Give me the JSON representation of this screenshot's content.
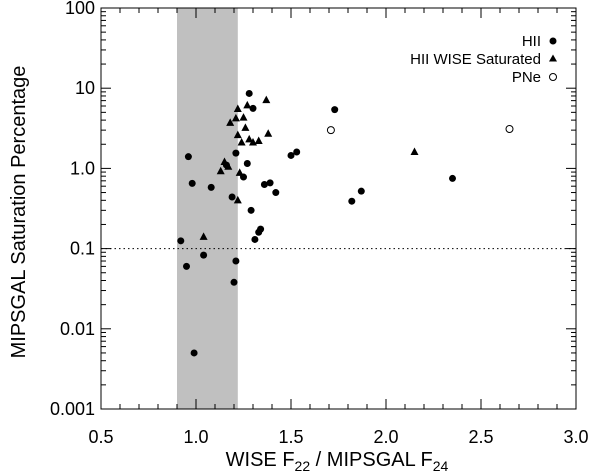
{
  "chart_data": {
    "type": "scatter",
    "title": "",
    "xlabel": {
      "prefix": "WISE F",
      "sub1": "22",
      "middle": " / MIPSGAL F",
      "sub2": "24"
    },
    "ylabel": "MIPSGAL Saturation Percentage",
    "xlim": [
      0.5,
      3.0
    ],
    "ylim": [
      0.001,
      100
    ],
    "yscale": "log",
    "xticks": [
      {
        "value": 0.5,
        "label": "0.5"
      },
      {
        "value": 1.0,
        "label": "1.0"
      },
      {
        "value": 1.5,
        "label": "1.5"
      },
      {
        "value": 2.0,
        "label": "2.0"
      },
      {
        "value": 2.5,
        "label": "2.5"
      },
      {
        "value": 3.0,
        "label": "3.0"
      }
    ],
    "yticks": [
      {
        "value": 0.001,
        "label": "0.001"
      },
      {
        "value": 0.01,
        "label": "0.01"
      },
      {
        "value": 0.1,
        "label": "0.1"
      },
      {
        "value": 1,
        "label": "1.0"
      },
      {
        "value": 10,
        "label": "10"
      },
      {
        "value": 100,
        "label": "100"
      }
    ],
    "shaded_band": {
      "x_from": 0.9,
      "x_to": 1.22,
      "color": "#c0c0c0"
    },
    "reference_line": {
      "y": 0.1,
      "style": "dotted"
    },
    "legend_position": "top-right",
    "series": [
      {
        "name": "HII",
        "marker": "filled-circle",
        "points": [
          [
            0.92,
            0.125
          ],
          [
            0.95,
            0.06
          ],
          [
            0.96,
            1.4
          ],
          [
            0.98,
            0.65
          ],
          [
            0.99,
            0.005
          ],
          [
            1.04,
            0.083
          ],
          [
            1.08,
            0.58
          ],
          [
            1.16,
            1.1
          ],
          [
            1.19,
            0.44
          ],
          [
            1.2,
            0.038
          ],
          [
            1.21,
            0.07
          ],
          [
            1.21,
            1.55
          ],
          [
            1.25,
            0.78
          ],
          [
            1.27,
            1.15
          ],
          [
            1.28,
            8.6
          ],
          [
            1.29,
            0.3
          ],
          [
            1.3,
            5.6
          ],
          [
            1.31,
            0.13
          ],
          [
            1.33,
            0.16
          ],
          [
            1.34,
            0.175
          ],
          [
            1.36,
            0.63
          ],
          [
            1.39,
            0.66
          ],
          [
            1.42,
            0.5
          ],
          [
            1.5,
            1.45
          ],
          [
            1.53,
            1.6
          ],
          [
            1.73,
            5.4
          ],
          [
            1.82,
            0.39
          ],
          [
            1.87,
            0.52
          ],
          [
            2.35,
            0.75
          ]
        ]
      },
      {
        "name": "HII WISE Saturated",
        "marker": "filled-triangle",
        "points": [
          [
            1.04,
            0.14
          ],
          [
            1.13,
            0.92
          ],
          [
            1.15,
            1.2
          ],
          [
            1.17,
            1.05
          ],
          [
            1.18,
            3.7
          ],
          [
            1.21,
            4.2
          ],
          [
            1.22,
            5.5
          ],
          [
            1.22,
            2.6
          ],
          [
            1.22,
            0.4
          ],
          [
            1.23,
            0.88
          ],
          [
            1.24,
            2.1
          ],
          [
            1.25,
            4.3
          ],
          [
            1.26,
            3.2
          ],
          [
            1.27,
            6.1
          ],
          [
            1.28,
            2.3
          ],
          [
            1.3,
            2.1
          ],
          [
            1.33,
            2.2
          ],
          [
            1.37,
            7.1
          ],
          [
            1.38,
            2.7
          ],
          [
            2.15,
            1.6
          ]
        ]
      },
      {
        "name": "PNe",
        "marker": "open-circle",
        "points": [
          [
            1.71,
            3.0
          ],
          [
            2.65,
            3.1
          ]
        ]
      }
    ]
  }
}
